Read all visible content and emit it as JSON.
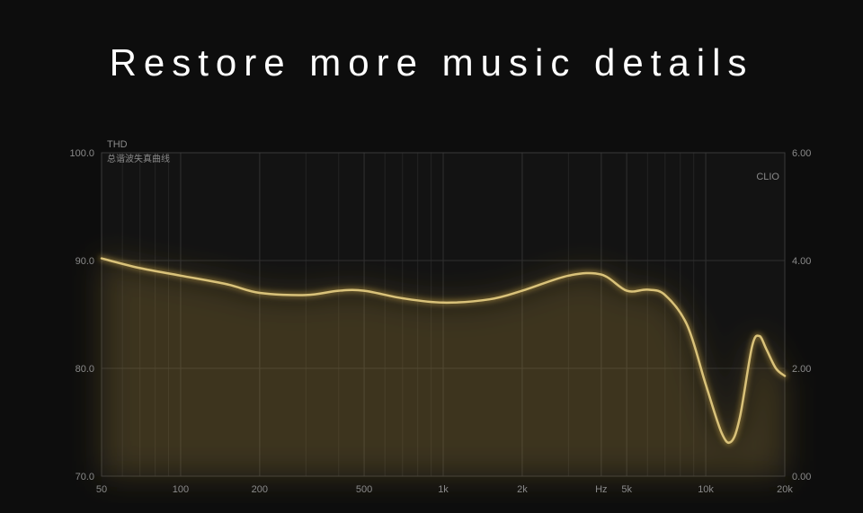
{
  "title": "Restore more music details",
  "chart": {
    "type": "line",
    "background_color": "#0d0d0d",
    "plot_bg_color": "#131313",
    "grid_color": "#2f2f2f",
    "grid_color_minor": "#242424",
    "border_color": "#3a3a3a",
    "line_color": "#d9c27a",
    "glow_color": "#a88a3a",
    "line_width": 2.5,
    "header_label_left": "THD",
    "header_sub_left": "总谐波失真曲线",
    "header_label_right": "CLIO",
    "left_axis": {
      "min": 70.0,
      "max": 100.0,
      "ticks": [
        70.0,
        80.0,
        90.0,
        100.0
      ],
      "tick_labels": [
        "70.0",
        "80.0",
        "90.0",
        "100.0"
      ]
    },
    "right_axis": {
      "min": 0.0,
      "max": 6.0,
      "ticks": [
        0.0,
        2.0,
        4.0,
        6.0
      ],
      "tick_labels": [
        "0.00",
        "2.00",
        "4.00",
        "6.00"
      ]
    },
    "x_axis": {
      "scale": "log",
      "min": 50,
      "max": 20000,
      "tick_values": [
        50,
        100,
        200,
        500,
        1000,
        2000,
        4000,
        5000,
        10000,
        20000
      ],
      "tick_labels": [
        "50",
        "100",
        "200",
        "500",
        "1k",
        "2k",
        "Hz",
        "5k",
        "10k",
        "20k"
      ]
    },
    "series": [
      {
        "x": 50,
        "y": 90.2
      },
      {
        "x": 70,
        "y": 89.3
      },
      {
        "x": 100,
        "y": 88.6
      },
      {
        "x": 150,
        "y": 87.8
      },
      {
        "x": 200,
        "y": 87.0
      },
      {
        "x": 300,
        "y": 86.8
      },
      {
        "x": 400,
        "y": 87.2
      },
      {
        "x": 500,
        "y": 87.2
      },
      {
        "x": 700,
        "y": 86.5
      },
      {
        "x": 1000,
        "y": 86.1
      },
      {
        "x": 1500,
        "y": 86.4
      },
      {
        "x": 2000,
        "y": 87.2
      },
      {
        "x": 3000,
        "y": 88.6
      },
      {
        "x": 4000,
        "y": 88.7
      },
      {
        "x": 5000,
        "y": 87.2
      },
      {
        "x": 6000,
        "y": 87.3
      },
      {
        "x": 7000,
        "y": 86.8
      },
      {
        "x": 8500,
        "y": 84.0
      },
      {
        "x": 10000,
        "y": 78.5
      },
      {
        "x": 11500,
        "y": 74.0
      },
      {
        "x": 12500,
        "y": 73.2
      },
      {
        "x": 13500,
        "y": 75.5
      },
      {
        "x": 15000,
        "y": 82.0
      },
      {
        "x": 16000,
        "y": 83.0
      },
      {
        "x": 17000,
        "y": 81.8
      },
      {
        "x": 18500,
        "y": 80.0
      },
      {
        "x": 20000,
        "y": 79.3
      }
    ],
    "title_fontsize": 42,
    "title_color": "#ffffff",
    "tick_fontsize": 11,
    "tick_color": "#8a8a8a"
  }
}
